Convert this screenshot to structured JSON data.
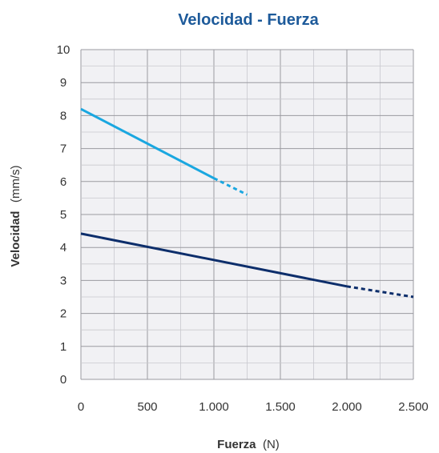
{
  "chart_data": {
    "type": "line",
    "title": "Velocidad - Fuerza",
    "xlabel": {
      "main": "Fuerza",
      "unit": "(N)"
    },
    "ylabel": {
      "main": "Velocidad",
      "unit": "(mm/s)"
    },
    "xlim": [
      0,
      2500
    ],
    "ylim": [
      0,
      10
    ],
    "x_major_step": 500,
    "x_minor_step": 250,
    "y_major_step": 1,
    "y_minor_step": 0.5,
    "grid": true,
    "x_tick_labels": [
      "0",
      "500",
      "1.000",
      "1.500",
      "2.000",
      "2.500"
    ],
    "y_tick_labels": [
      "0",
      "1",
      "2",
      "3",
      "4",
      "5",
      "6",
      "7",
      "8",
      "9",
      "10"
    ],
    "series": [
      {
        "color": "#1aa7e0",
        "solid": [
          [
            0,
            8.2
          ],
          [
            1000,
            6.1
          ]
        ],
        "dashed": [
          [
            1000,
            6.1
          ],
          [
            1250,
            5.6
          ]
        ]
      },
      {
        "color": "#0d2e6b",
        "solid": [
          [
            0,
            4.42
          ],
          [
            2000,
            2.82
          ]
        ],
        "dashed": [
          [
            2000,
            2.82
          ],
          [
            2500,
            2.5
          ]
        ]
      }
    ]
  }
}
